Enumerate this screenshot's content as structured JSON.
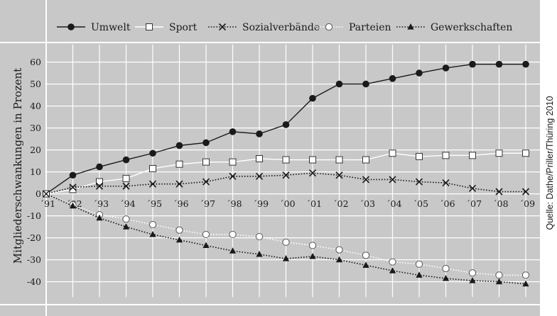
{
  "chart_data": {
    "type": "line",
    "ylabel": "Mitgliederschwankungen in Prozent",
    "source": "Quelle: Dathe/Priller/Thüring 2010",
    "x": [
      "´91",
      "´92",
      "´93",
      "´94",
      "´95",
      "´96",
      "´97",
      "´98",
      "´99",
      "´00",
      "´01",
      "´02",
      "´03",
      "´04",
      "´05",
      "´06",
      "´07",
      "´08",
      "´09"
    ],
    "ylim": [
      -47,
      68
    ],
    "yticks": [
      60,
      50,
      40,
      30,
      20,
      10,
      0,
      -10,
      -20,
      -30,
      -40
    ],
    "grid": true,
    "legend_position": "top",
    "colors": {
      "background": "#c8c8c8",
      "grid": "#ffffff",
      "line": "#1a1a1a",
      "hollow_fill": "#ffffff"
    },
    "series": [
      {
        "name": "Umwelt",
        "marker": "filled-circle",
        "line_style": "solid",
        "line_color": "#1a1a1a",
        "values": [
          0,
          8.5,
          12.3,
          15.5,
          18.5,
          22,
          23.3,
          28.3,
          27.3,
          31.5,
          43.5,
          50,
          50,
          52.5,
          55,
          57.3,
          59,
          59,
          59
        ]
      },
      {
        "name": "Sport",
        "marker": "hollow-square",
        "line_style": "solid",
        "line_color": "#ffffff",
        "values": [
          0,
          2,
          5.5,
          7,
          11.5,
          13.5,
          14.5,
          14.5,
          16,
          15.5,
          15.5,
          15.5,
          15.5,
          18.5,
          17,
          17.5,
          17.5,
          18.5,
          18.5
        ]
      },
      {
        "name": "Sozialverbände",
        "marker": "x",
        "line_style": "dotted",
        "line_color": "#1a1a1a",
        "values": [
          0,
          3,
          3.5,
          3.5,
          4.5,
          4.5,
          5.5,
          8,
          8,
          8.5,
          9.5,
          8.5,
          6.5,
          6.5,
          5.5,
          5,
          2.5,
          1,
          1
        ]
      },
      {
        "name": "Parteien",
        "marker": "hollow-circle",
        "line_style": "dotted",
        "line_color": "#ffffff",
        "values": [
          0,
          -5,
          -9.5,
          -11.5,
          -14,
          -16.5,
          -18.5,
          -18.5,
          -19.5,
          -22,
          -23.5,
          -25.5,
          -28,
          -31,
          -32,
          -34,
          -36,
          -37,
          -37
        ]
      },
      {
        "name": "Gewerkschaften",
        "marker": "filled-triangle",
        "line_style": "dotted",
        "line_color": "#1a1a1a",
        "values": [
          0,
          -5.5,
          -11,
          -15,
          -18.5,
          -21,
          -23.5,
          -26,
          -27.5,
          -29.5,
          -28.5,
          -30,
          -32.5,
          -35,
          -37,
          -38.5,
          -39.5,
          -40,
          -41
        ]
      }
    ]
  }
}
